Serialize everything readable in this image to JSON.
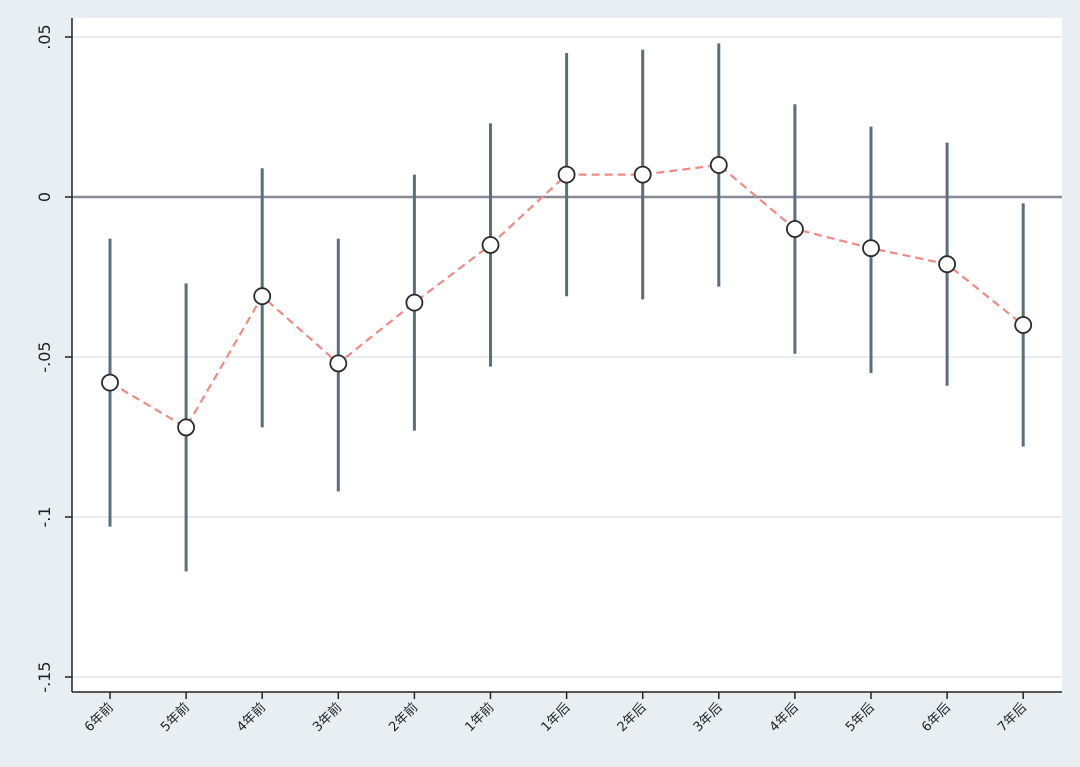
{
  "chart_data": {
    "type": "line",
    "title": "",
    "xlabel": "",
    "ylabel": "",
    "categories": [
      "6年前",
      "5年前",
      "4年前",
      "3年前",
      "2年前",
      "1年前",
      "1年后",
      "2年后",
      "3年后",
      "4年后",
      "5年后",
      "6年后",
      "7年后"
    ],
    "series": [
      {
        "values": [
          -0.058,
          -0.072,
          -0.031,
          -0.052,
          -0.033,
          -0.015,
          0.007,
          0.007,
          0.01,
          -0.01,
          -0.016,
          -0.021,
          -0.04
        ],
        "ci_lower": [
          -0.103,
          -0.117,
          -0.072,
          -0.092,
          -0.073,
          -0.053,
          -0.031,
          -0.032,
          -0.028,
          -0.049,
          -0.055,
          -0.059,
          -0.078
        ],
        "ci_upper": [
          -0.013,
          -0.027,
          0.009,
          -0.013,
          0.007,
          0.023,
          0.045,
          0.046,
          0.048,
          0.029,
          0.022,
          0.017,
          -0.002
        ]
      }
    ],
    "ylim": [
      -0.155,
      0.055
    ],
    "yticks": [
      0.05,
      0,
      -0.05,
      -0.1,
      -0.15
    ],
    "ytick_labels": [
      ".05",
      "0",
      "-.05",
      "-.1",
      "-.15"
    ],
    "reference_line_y": 0,
    "grid": true,
    "colors": {
      "background": "#e8eef2",
      "plot_area": "#ffffff",
      "grid": "#dfe9ec",
      "reference_line": "#8a8a96",
      "ci_bar": "#5a6f7c",
      "line": "#f08a84",
      "marker_fill": "#ffffff",
      "marker_stroke": "#2b2b2b",
      "axis": "#222222"
    }
  }
}
